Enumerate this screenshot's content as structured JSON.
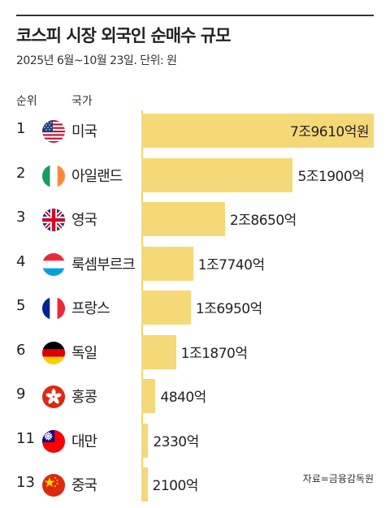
{
  "title": "코스피 시장 외국인 순매수 규모",
  "subtitle": "2025년 6월~10월 23일. 단위: 원",
  "headers": {
    "rank": "순위",
    "country": "국가"
  },
  "source": "자료=금융감독원",
  "colors": {
    "bar": "#f5d877",
    "axis": "#f1d46a",
    "text": "#222222"
  },
  "chart_data": {
    "type": "bar",
    "orientation": "horizontal",
    "title": "코스피 시장 외국인 순매수 규모",
    "subtitle": "2025년 6월~10월 23일. 단위: 원",
    "unit": "원",
    "categories": [
      "미국",
      "아일랜드",
      "영국",
      "룩셈부르크",
      "프랑스",
      "독일",
      "홍콩",
      "대만",
      "중국"
    ],
    "ranks": [
      "1",
      "2",
      "3",
      "4",
      "5",
      "6",
      "9",
      "11",
      "13"
    ],
    "values": [
      7961000000000,
      5190000000000,
      2865000000000,
      1774000000000,
      1695000000000,
      1187000000000,
      484000000000,
      233000000000,
      210000000000
    ],
    "value_labels": [
      "7조9610억원",
      "5조1900억",
      "2조8650억",
      "1조7740억",
      "1조6950억",
      "1조1870억",
      "4840억",
      "2330억",
      "2100억"
    ],
    "flag_icons": [
      "us-flag-icon",
      "ireland-flag-icon",
      "uk-flag-icon",
      "luxembourg-flag-icon",
      "france-flag-icon",
      "germany-flag-icon",
      "hongkong-flag-icon",
      "taiwan-flag-icon",
      "china-flag-icon"
    ],
    "xlim": [
      0,
      7961000000000
    ]
  }
}
